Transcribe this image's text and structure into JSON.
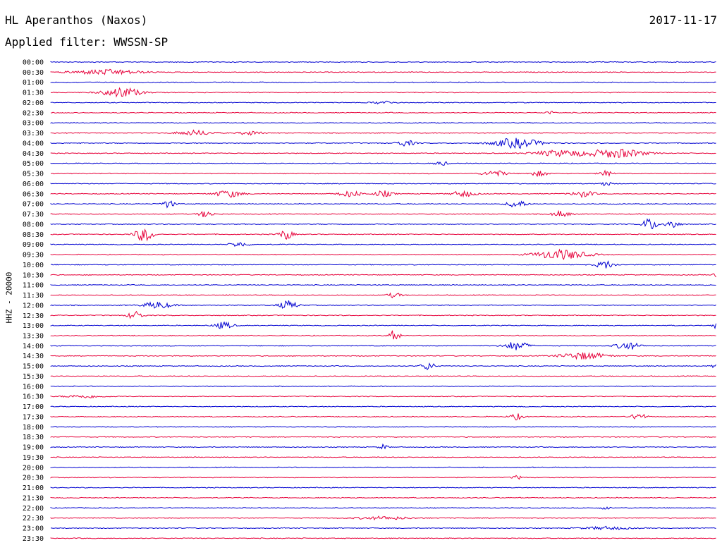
{
  "header": {
    "station": "HL Aperanthos (Naxos)",
    "date": "2017-11-17",
    "filter": "Applied filter: WWSSN-SP"
  },
  "colors": {
    "trace_a": "#0000d0",
    "trace_b": "#e6003a"
  },
  "chart_data": {
    "type": "line",
    "title": "HL Aperanthos (Naxos)",
    "date": "2017-11-17",
    "filter": "WWSSN-SP",
    "ylabel": "HHZ - 20000",
    "row_labels": [
      "00:00",
      "00:30",
      "01:00",
      "01:30",
      "02:00",
      "02:30",
      "03:00",
      "03:30",
      "04:00",
      "04:30",
      "05:00",
      "05:30",
      "06:00",
      "06:30",
      "07:00",
      "07:30",
      "08:00",
      "08:30",
      "09:00",
      "09:30",
      "10:00",
      "10:30",
      "11:00",
      "11:30",
      "12:00",
      "12:30",
      "13:00",
      "13:30",
      "14:00",
      "14:30",
      "15:00",
      "15:30",
      "16:00",
      "16:30",
      "17:00",
      "17:30",
      "18:00",
      "18:30",
      "19:00",
      "19:30",
      "20:00",
      "20:30",
      "21:00",
      "21:30",
      "22:00",
      "22:30",
      "23:00",
      "23:30"
    ],
    "row_minutes": 30,
    "series_colors": [
      "blue",
      "red"
    ],
    "grid": false,
    "events": [
      {
        "row": "00:30",
        "minute": 2.5,
        "amplitude": 0.5,
        "duration": 1.5
      },
      {
        "row": "01:30",
        "minute": 3.2,
        "amplitude": 1.0,
        "duration": 0.8
      },
      {
        "row": "02:00",
        "minute": 15.0,
        "amplitude": 0.3,
        "duration": 0.5
      },
      {
        "row": "02:30",
        "minute": 22.5,
        "amplitude": 0.3,
        "duration": 0.2
      },
      {
        "row": "03:30",
        "minute": 6.5,
        "amplitude": 0.5,
        "duration": 0.8
      },
      {
        "row": "03:30",
        "minute": 9.0,
        "amplitude": 0.4,
        "duration": 0.5
      },
      {
        "row": "04:00",
        "minute": 16.0,
        "amplitude": 0.6,
        "duration": 0.4
      },
      {
        "row": "04:00",
        "minute": 21.0,
        "amplitude": 1.0,
        "duration": 1.0
      },
      {
        "row": "04:30",
        "minute": 23.0,
        "amplitude": 0.6,
        "duration": 1.2
      },
      {
        "row": "04:30",
        "minute": 25.5,
        "amplitude": 0.9,
        "duration": 1.2
      },
      {
        "row": "05:00",
        "minute": 17.6,
        "amplitude": 0.4,
        "duration": 0.3
      },
      {
        "row": "05:30",
        "minute": 20.0,
        "amplitude": 0.6,
        "duration": 0.5
      },
      {
        "row": "05:30",
        "minute": 22.0,
        "amplitude": 0.5,
        "duration": 0.4
      },
      {
        "row": "05:30",
        "minute": 25.0,
        "amplitude": 0.5,
        "duration": 0.3
      },
      {
        "row": "06:00",
        "minute": 25.0,
        "amplitude": 0.6,
        "duration": 0.2
      },
      {
        "row": "06:30",
        "minute": 8.0,
        "amplitude": 0.7,
        "duration": 0.6
      },
      {
        "row": "06:30",
        "minute": 13.5,
        "amplitude": 0.6,
        "duration": 0.5
      },
      {
        "row": "06:30",
        "minute": 15.0,
        "amplitude": 0.6,
        "duration": 0.4
      },
      {
        "row": "06:30",
        "minute": 18.6,
        "amplitude": 0.6,
        "duration": 0.5
      },
      {
        "row": "06:30",
        "minute": 24.0,
        "amplitude": 0.6,
        "duration": 0.5
      },
      {
        "row": "07:00",
        "minute": 5.3,
        "amplitude": 0.7,
        "duration": 0.3
      },
      {
        "row": "07:00",
        "minute": 21.0,
        "amplitude": 0.8,
        "duration": 0.4
      },
      {
        "row": "07:30",
        "minute": 7.0,
        "amplitude": 0.7,
        "duration": 0.3
      },
      {
        "row": "07:30",
        "minute": 23.0,
        "amplitude": 0.6,
        "duration": 0.4
      },
      {
        "row": "08:00",
        "minute": 27.0,
        "amplitude": 1.3,
        "duration": 0.3
      },
      {
        "row": "08:00",
        "minute": 28.0,
        "amplitude": 0.9,
        "duration": 0.3
      },
      {
        "row": "08:30",
        "minute": 4.2,
        "amplitude": 1.4,
        "duration": 0.4
      },
      {
        "row": "08:30",
        "minute": 10.6,
        "amplitude": 1.0,
        "duration": 0.3
      },
      {
        "row": "09:00",
        "minute": 8.5,
        "amplitude": 0.5,
        "duration": 0.4
      },
      {
        "row": "09:30",
        "minute": 23.0,
        "amplitude": 1.0,
        "duration": 1.1
      },
      {
        "row": "10:00",
        "minute": 25.0,
        "amplitude": 0.8,
        "duration": 0.4
      },
      {
        "row": "10:30",
        "minute": 30.0,
        "amplitude": 0.4,
        "duration": 0.1
      },
      {
        "row": "11:30",
        "minute": 15.5,
        "amplitude": 0.5,
        "duration": 0.3
      },
      {
        "row": "12:00",
        "minute": 4.8,
        "amplitude": 0.7,
        "duration": 0.6
      },
      {
        "row": "12:00",
        "minute": 10.7,
        "amplitude": 0.9,
        "duration": 0.4
      },
      {
        "row": "12:30",
        "minute": 3.8,
        "amplitude": 0.9,
        "duration": 0.3
      },
      {
        "row": "13:00",
        "minute": 7.8,
        "amplitude": 0.7,
        "duration": 0.4
      },
      {
        "row": "13:00",
        "minute": 30.0,
        "amplitude": 0.6,
        "duration": 0.2
      },
      {
        "row": "13:30",
        "minute": 15.5,
        "amplitude": 1.6,
        "duration": 0.2
      },
      {
        "row": "14:00",
        "minute": 21.0,
        "amplitude": 0.9,
        "duration": 0.5
      },
      {
        "row": "14:00",
        "minute": 26.0,
        "amplitude": 0.8,
        "duration": 0.5
      },
      {
        "row": "14:30",
        "minute": 24.0,
        "amplitude": 0.7,
        "duration": 1.0
      },
      {
        "row": "15:00",
        "minute": 17.0,
        "amplitude": 0.8,
        "duration": 0.3
      },
      {
        "row": "15:00",
        "minute": 30.0,
        "amplitude": 0.4,
        "duration": 0.2
      },
      {
        "row": "16:30",
        "minute": 1.5,
        "amplitude": 0.3,
        "duration": 0.8
      },
      {
        "row": "17:30",
        "minute": 21.0,
        "amplitude": 0.6,
        "duration": 0.3
      },
      {
        "row": "17:30",
        "minute": 26.5,
        "amplitude": 0.8,
        "duration": 0.3
      },
      {
        "row": "19:00",
        "minute": 15.0,
        "amplitude": 0.5,
        "duration": 0.2
      },
      {
        "row": "20:30",
        "minute": 21.0,
        "amplitude": 0.4,
        "duration": 0.2
      },
      {
        "row": "22:00",
        "minute": 25.0,
        "amplitude": 0.3,
        "duration": 0.2
      },
      {
        "row": "22:30",
        "minute": 15.0,
        "amplitude": 0.3,
        "duration": 1.2
      },
      {
        "row": "23:00",
        "minute": 25.0,
        "amplitude": 0.3,
        "duration": 1.0
      }
    ]
  }
}
